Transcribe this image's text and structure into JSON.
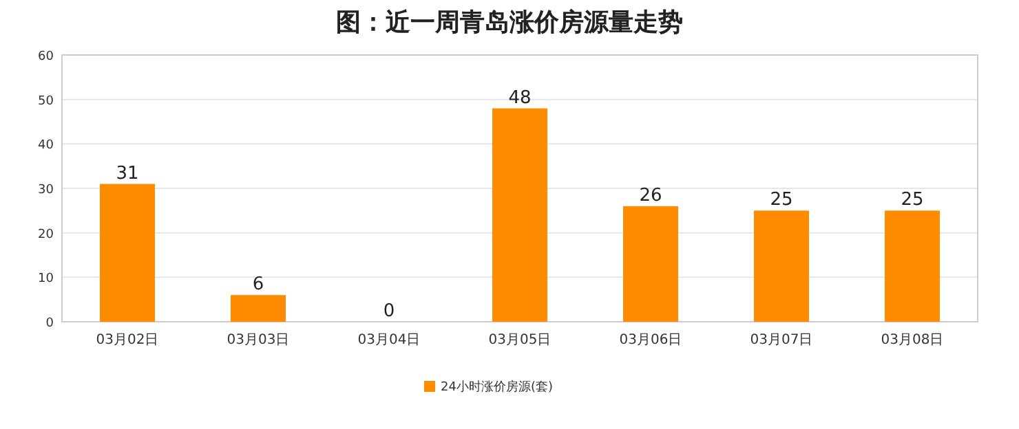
{
  "chart_data": {
    "type": "bar",
    "title": "图：近一周青岛涨价房源量走势",
    "categories": [
      "03月02日",
      "03月03日",
      "03月04日",
      "03月05日",
      "03月06日",
      "03月07日",
      "03月08日"
    ],
    "series": [
      {
        "name": "24小时涨价房源(套)",
        "color": "#ff8c00",
        "values": [
          31,
          6,
          0,
          48,
          26,
          25,
          25
        ]
      }
    ],
    "ylim": [
      0,
      60
    ],
    "yticks": [
      0,
      10,
      20,
      30,
      40,
      50,
      60
    ],
    "grid": "y",
    "legend": "bottom",
    "data_labels": true
  }
}
